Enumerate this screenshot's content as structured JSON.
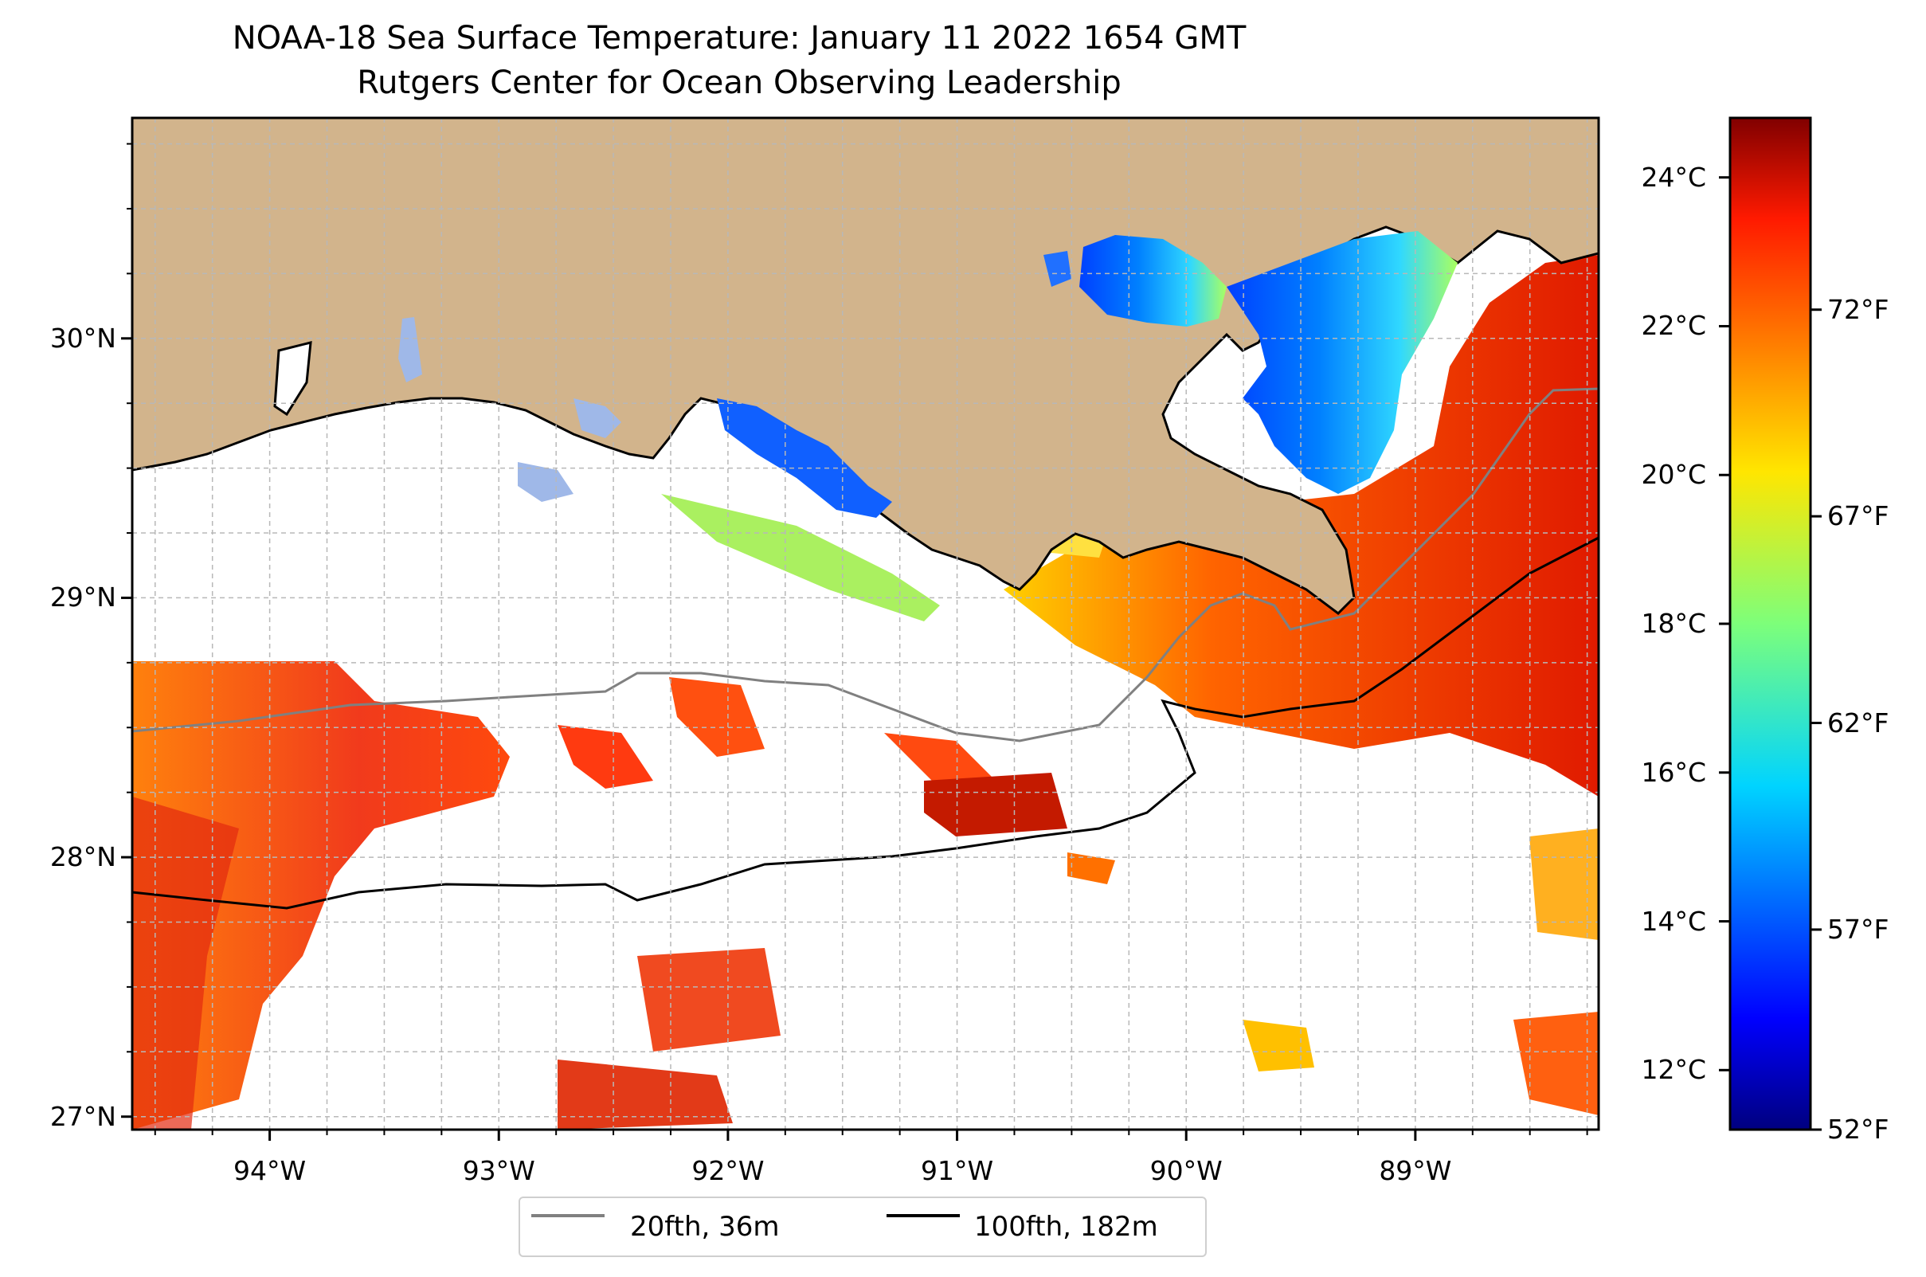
{
  "title": {
    "line1": "NOAA-18 Sea Surface Temperature: January 11 2022 1654 GMT",
    "line2": "Rutgers Center for Ocean Observing Leadership"
  },
  "map": {
    "region": "Northern Gulf of Mexico, Louisiana coast",
    "lon_range": [
      -94.6,
      -88.2
    ],
    "lat_range": [
      26.95,
      30.85
    ],
    "lon_ticks": [
      {
        "value": -94,
        "label": "94°W"
      },
      {
        "value": -93,
        "label": "93°W"
      },
      {
        "value": -92,
        "label": "92°W"
      },
      {
        "value": -91,
        "label": "91°W"
      },
      {
        "value": -90,
        "label": "90°W"
      },
      {
        "value": -89,
        "label": "89°W"
      }
    ],
    "lat_ticks": [
      {
        "value": 30,
        "label": "30°N"
      },
      {
        "value": 29,
        "label": "29°N"
      },
      {
        "value": 28,
        "label": "28°N"
      },
      {
        "value": 27,
        "label": "27°N"
      }
    ],
    "land_color": "#d2b48c",
    "gridlines": true
  },
  "colorbar": {
    "colormap": "jet",
    "range_c": [
      11.2,
      24.8
    ],
    "celsius_ticks": [
      {
        "value": 24,
        "label": "24°C"
      },
      {
        "value": 22,
        "label": "22°C"
      },
      {
        "value": 20,
        "label": "20°C"
      },
      {
        "value": 18,
        "label": "18°C"
      },
      {
        "value": 16,
        "label": "16°C"
      },
      {
        "value": 14,
        "label": "14°C"
      },
      {
        "value": 12,
        "label": "12°C"
      }
    ],
    "fahrenheit_ticks": [
      {
        "value": 72,
        "label": "72°F"
      },
      {
        "value": 67,
        "label": "67°F"
      },
      {
        "value": 62,
        "label": "62°F"
      },
      {
        "value": 57,
        "label": "57°F"
      },
      {
        "value": 52,
        "label": "52°F"
      }
    ]
  },
  "legend": {
    "items": [
      {
        "label": "20fth, 36m",
        "color": "#808080"
      },
      {
        "label": "100fth, 182m",
        "color": "#000000"
      }
    ]
  }
}
